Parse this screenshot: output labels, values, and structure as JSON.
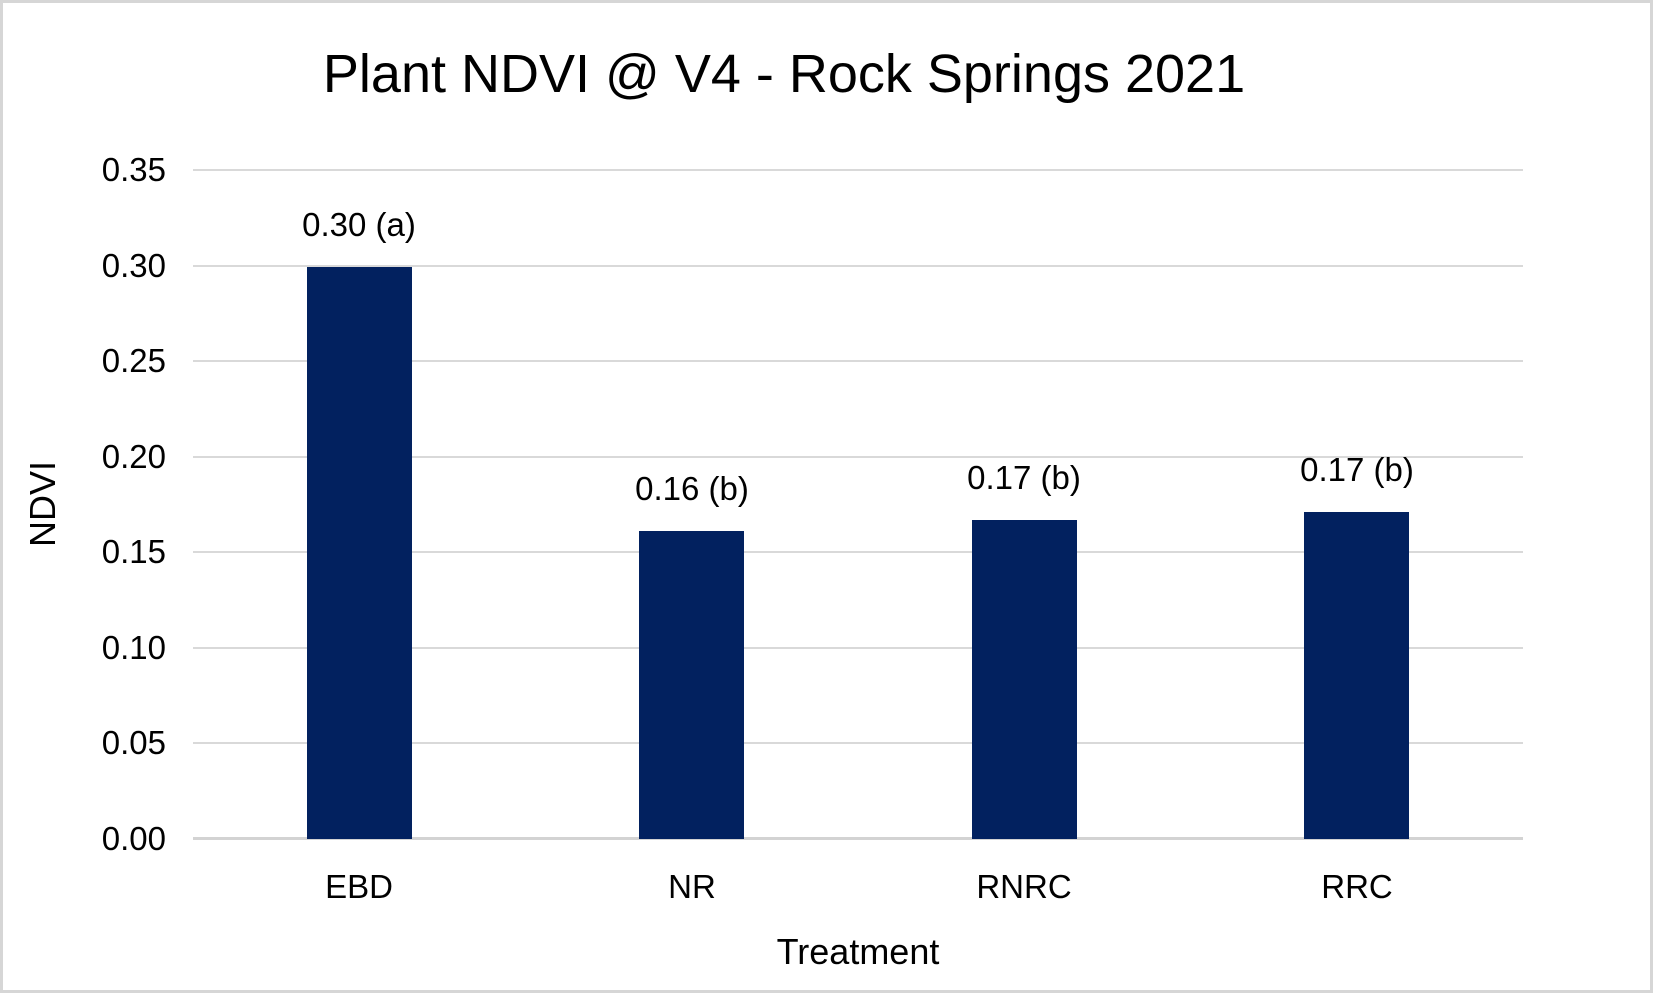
{
  "chart_data": {
    "type": "bar",
    "title": "Plant NDVI @ V4 - Rock Springs 2021",
    "xlabel": "Treatment",
    "ylabel": "NDVI",
    "categories": [
      "EBD",
      "NR",
      "RNRC",
      "RRC"
    ],
    "values": [
      0.3,
      0.16,
      0.17,
      0.17
    ],
    "bar_labels": [
      "0.30 (a)",
      "0.16 (b)",
      "0.17 (b)",
      "0.17 (b)"
    ],
    "values_rendered": [
      0.299,
      0.161,
      0.167,
      0.171
    ],
    "ylim": [
      0,
      0.35
    ],
    "yticks": [
      0,
      0.05,
      0.1,
      0.15,
      0.2,
      0.25,
      0.3,
      0.35
    ],
    "ytick_labels": [
      "0.00",
      "0.05",
      "0.10",
      "0.15",
      "0.20",
      "0.25",
      "0.30",
      "0.35"
    ],
    "grid": true,
    "legend": false,
    "colors": {
      "bar": "#02215f",
      "gridline": "#d9d9d9",
      "axis_line": "#d3d3d3",
      "text": "#000000",
      "frame_border": "#d6d6d6",
      "background": "#ffffff"
    }
  }
}
